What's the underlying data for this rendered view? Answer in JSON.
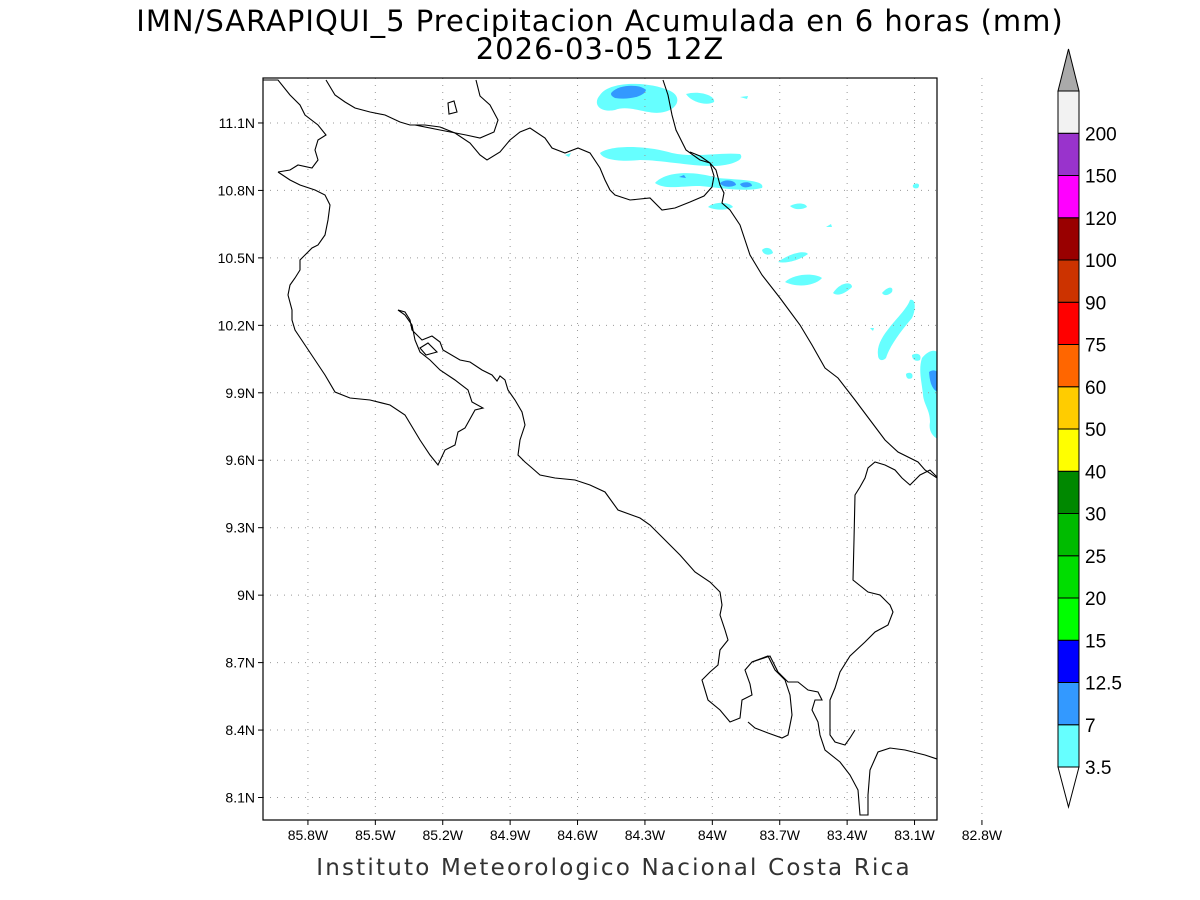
{
  "title": {
    "line1": "IMN/SARAPIQUI_5 Precipitacion Acumulada en 6 horas (mm)",
    "line2": "2026-03-05 12Z"
  },
  "footer": "Instituto Meteorologico Nacional Costa Rica",
  "map": {
    "lon_range": [
      -86.0,
      -83.0
    ],
    "lat_range": [
      8.0,
      11.3
    ],
    "x_ticks": [
      {
        "lon": -85.8,
        "label": "85.8W"
      },
      {
        "lon": -85.5,
        "label": "85.5W"
      },
      {
        "lon": -85.2,
        "label": "85.2W"
      },
      {
        "lon": -84.9,
        "label": "84.9W"
      },
      {
        "lon": -84.6,
        "label": "84.6W"
      },
      {
        "lon": -84.3,
        "label": "84.3W"
      },
      {
        "lon": -84.0,
        "label": "84W"
      },
      {
        "lon": -83.7,
        "label": "83.7W"
      },
      {
        "lon": -83.4,
        "label": "83.4W"
      },
      {
        "lon": -83.1,
        "label": "83.1W"
      },
      {
        "lon": -82.8,
        "label": "82.8W"
      }
    ],
    "y_ticks": [
      {
        "lat": 11.1,
        "label": "11.1N"
      },
      {
        "lat": 10.8,
        "label": "10.8N"
      },
      {
        "lat": 10.5,
        "label": "10.5N"
      },
      {
        "lat": 10.2,
        "label": "10.2N"
      },
      {
        "lat": 9.9,
        "label": "9.9N"
      },
      {
        "lat": 9.6,
        "label": "9.6N"
      },
      {
        "lat": 9.3,
        "label": "9.3N"
      },
      {
        "lat": 9.0,
        "label": "9N"
      },
      {
        "lat": 8.7,
        "label": "8.7N"
      },
      {
        "lat": 8.4,
        "label": "8.4N"
      },
      {
        "lat": 8.1,
        "label": "8.1N"
      }
    ],
    "grid": "dotted"
  },
  "colorbar": {
    "levels": [
      {
        "label": "3.5",
        "color": "#66ffff"
      },
      {
        "label": "7",
        "color": "#3399ff"
      },
      {
        "label": "12.5",
        "color": "#0000ff"
      },
      {
        "label": "15",
        "color": "#00ff00"
      },
      {
        "label": "20",
        "color": "#00dd00"
      },
      {
        "label": "25",
        "color": "#00bb00"
      },
      {
        "label": "30",
        "color": "#008800"
      },
      {
        "label": "40",
        "color": "#ffff00"
      },
      {
        "label": "50",
        "color": "#ffcc00"
      },
      {
        "label": "60",
        "color": "#ff6600"
      },
      {
        "label": "75",
        "color": "#ff0000"
      },
      {
        "label": "90",
        "color": "#cc3300"
      },
      {
        "label": "100",
        "color": "#990000"
      },
      {
        "label": "120",
        "color": "#ff00ff"
      },
      {
        "label": "150",
        "color": "#9933cc"
      },
      {
        "label": "200",
        "color": "#f2f2f2"
      }
    ],
    "low_arrow_color": "#ffffff",
    "high_arrow_color": "#aaaaaa"
  },
  "precip_colors": {
    "light": "#66ffff",
    "medium": "#3399ff"
  }
}
